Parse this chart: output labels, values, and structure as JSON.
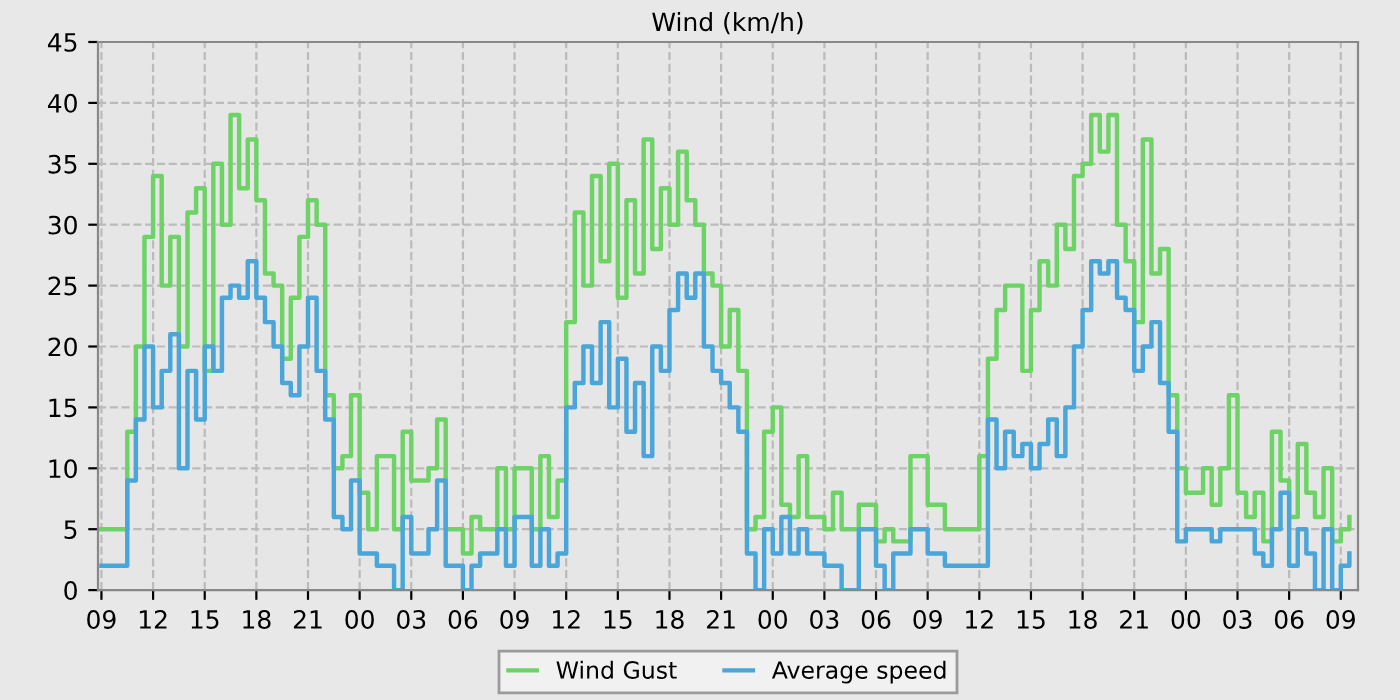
{
  "chart_data": {
    "type": "step",
    "title": "Wind (km/h)",
    "x": [
      9,
      10,
      10.5,
      11,
      11.5,
      12,
      12.5,
      13,
      13.5,
      14,
      14.5,
      15,
      15.5,
      16,
      16.5,
      17,
      17.5,
      18,
      18.5,
      19,
      19.5,
      20,
      20.5,
      21,
      21.5,
      22,
      22.5,
      23,
      23.5,
      24,
      24.5,
      25,
      26,
      26.5,
      27,
      28,
      28.5,
      29,
      30,
      30.5,
      31,
      32,
      32.5,
      33,
      34,
      34.5,
      35,
      35.5,
      36,
      36.5,
      37,
      37.5,
      38,
      38.5,
      39,
      39.5,
      40,
      40.5,
      41,
      41.5,
      42,
      42.5,
      43,
      43.5,
      44,
      44.5,
      45,
      45.5,
      46,
      46.5,
      47,
      47.5,
      48,
      48.5,
      49,
      49.5,
      50,
      51,
      51.5,
      52,
      53,
      54,
      54.5,
      55,
      56,
      57,
      58,
      59,
      60,
      60.5,
      61,
      61.5,
      62,
      62.5,
      63,
      63.5,
      64,
      64.5,
      65,
      65.5,
      66,
      66.5,
      67,
      67.5,
      68,
      68.5,
      69,
      69.5,
      70,
      70.5,
      71,
      71.5,
      72,
      73,
      73.5,
      74,
      74.5,
      75,
      75.5,
      76,
      76.5,
      77,
      77.5,
      78,
      78.5,
      79,
      79.5,
      80,
      80.5,
      81,
      81.5
    ],
    "series": [
      {
        "name": "Wind Gust",
        "color": "#6dd366",
        "values": [
          5,
          5,
          13,
          20,
          29,
          34,
          25,
          29,
          20,
          31,
          33,
          18,
          35,
          30,
          39,
          33,
          37,
          32,
          26,
          25,
          19,
          24,
          29,
          32,
          30,
          16,
          10,
          11,
          16,
          8,
          5,
          11,
          5,
          13,
          9,
          10,
          14,
          5,
          3,
          6,
          5,
          10,
          5,
          10,
          5,
          11,
          6,
          9,
          22,
          31,
          25,
          34,
          27,
          35,
          24,
          32,
          26,
          37,
          28,
          33,
          30,
          36,
          32,
          30,
          26,
          25,
          20,
          23,
          18,
          5,
          6,
          13,
          15,
          7,
          6,
          11,
          6,
          5,
          8,
          5,
          7,
          4,
          5,
          4,
          11,
          7,
          5,
          5,
          11,
          19,
          23,
          25,
          25,
          18,
          23,
          27,
          25,
          30,
          28,
          34,
          35,
          39,
          36,
          39,
          30,
          27,
          22,
          37,
          26,
          28,
          16,
          10,
          8,
          10,
          7,
          10,
          16,
          8,
          6,
          8,
          4,
          13,
          9,
          6,
          12,
          8,
          6,
          10,
          4,
          5,
          6
        ]
      },
      {
        "name": "Average speed",
        "color": "#4aa6d8",
        "values": [
          2,
          2,
          9,
          14,
          20,
          15,
          18,
          21,
          10,
          18,
          14,
          20,
          18,
          24,
          25,
          24,
          27,
          24,
          22,
          20,
          17,
          16,
          20,
          24,
          18,
          14,
          6,
          5,
          9,
          3,
          3,
          2,
          0,
          6,
          3,
          5,
          9,
          2,
          0,
          2,
          3,
          5,
          2,
          6,
          2,
          5,
          2,
          3,
          15,
          17,
          20,
          17,
          22,
          15,
          19,
          13,
          17,
          11,
          20,
          18,
          23,
          26,
          24,
          26,
          20,
          18,
          17,
          15,
          13,
          3,
          0,
          5,
          3,
          6,
          3,
          5,
          3,
          2,
          2,
          0,
          5,
          2,
          0,
          3,
          5,
          3,
          2,
          2,
          2,
          14,
          10,
          13,
          11,
          12,
          10,
          12,
          14,
          11,
          15,
          20,
          23,
          27,
          26,
          27,
          24,
          23,
          18,
          20,
          22,
          17,
          13,
          4,
          5,
          5,
          4,
          5,
          5,
          5,
          5,
          3,
          2,
          5,
          8,
          2,
          5,
          3,
          0,
          5,
          0,
          2,
          3
        ]
      }
    ],
    "xlim": [
      8.8,
      82
    ],
    "xticks": [
      {
        "value": 9,
        "label": "09"
      },
      {
        "value": 12,
        "label": "12"
      },
      {
        "value": 15,
        "label": "15"
      },
      {
        "value": 18,
        "label": "18"
      },
      {
        "value": 21,
        "label": "21"
      },
      {
        "value": 24,
        "label": "00"
      },
      {
        "value": 27,
        "label": "03"
      },
      {
        "value": 30,
        "label": "06"
      },
      {
        "value": 33,
        "label": "09"
      },
      {
        "value": 36,
        "label": "12"
      },
      {
        "value": 39,
        "label": "15"
      },
      {
        "value": 42,
        "label": "18"
      },
      {
        "value": 45,
        "label": "21"
      },
      {
        "value": 48,
        "label": "00"
      },
      {
        "value": 51,
        "label": "03"
      },
      {
        "value": 54,
        "label": "06"
      },
      {
        "value": 57,
        "label": "09"
      },
      {
        "value": 60,
        "label": "12"
      },
      {
        "value": 63,
        "label": "15"
      },
      {
        "value": 66,
        "label": "18"
      },
      {
        "value": 69,
        "label": "21"
      },
      {
        "value": 72,
        "label": "00"
      },
      {
        "value": 75,
        "label": "03"
      },
      {
        "value": 78,
        "label": "06"
      },
      {
        "value": 81,
        "label": "09"
      }
    ],
    "ylim": [
      0,
      45
    ],
    "yticks": [
      0,
      5,
      10,
      15,
      20,
      25,
      30,
      35,
      40,
      45
    ],
    "grid": true,
    "legend": "bottom",
    "line_style": "solid"
  }
}
